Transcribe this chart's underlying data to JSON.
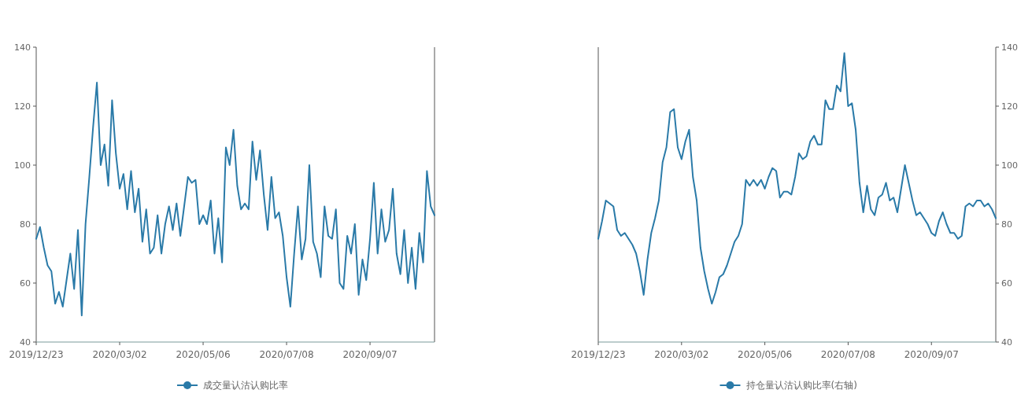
{
  "chart_data": [
    {
      "type": "line",
      "categories": [
        "2019/12/23",
        null,
        null,
        null,
        null,
        null,
        null,
        null,
        null,
        null,
        null,
        null,
        null,
        null,
        null,
        null,
        null,
        null,
        null,
        null,
        null,
        null,
        "2020/03/02",
        null,
        null,
        null,
        null,
        null,
        null,
        null,
        null,
        null,
        null,
        null,
        null,
        null,
        null,
        null,
        null,
        null,
        null,
        null,
        null,
        null,
        "2020/05/06",
        null,
        null,
        null,
        null,
        null,
        null,
        null,
        null,
        null,
        null,
        null,
        null,
        null,
        null,
        null,
        null,
        null,
        null,
        null,
        null,
        null,
        "2020/07/08",
        null,
        null,
        null,
        null,
        null,
        null,
        null,
        null,
        null,
        null,
        null,
        null,
        null,
        null,
        null,
        null,
        null,
        null,
        null,
        null,
        null,
        "2020/09/07",
        null,
        null,
        null,
        null,
        null,
        null,
        null,
        null,
        null,
        null,
        null,
        null,
        null,
        null,
        null,
        null,
        null
      ],
      "ylim": [
        40,
        140
      ],
      "yticks": [
        40,
        60,
        80,
        100,
        120,
        140
      ],
      "legend": "bottom",
      "series": [
        {
          "name": "成交量认沽认购比率",
          "color": "#2a7aa8",
          "values": [
            75,
            79,
            72,
            66,
            64,
            53,
            57,
            52,
            61,
            70,
            58,
            78,
            49,
            80,
            96,
            113,
            128,
            100,
            107,
            93,
            122,
            104,
            92,
            97,
            85,
            98,
            84,
            92,
            74,
            85,
            70,
            72,
            83,
            70,
            80,
            86,
            78,
            87,
            76,
            86,
            96,
            94,
            95,
            80,
            83,
            80,
            88,
            70,
            82,
            67,
            106,
            100,
            112,
            93,
            85,
            87,
            85,
            108,
            95,
            105,
            90,
            78,
            96,
            82,
            84,
            76,
            62,
            52,
            70,
            86,
            68,
            75,
            100,
            74,
            70,
            62,
            86,
            76,
            75,
            85,
            60,
            58,
            76,
            70,
            80,
            56,
            68,
            61,
            75,
            94,
            70,
            85,
            74,
            78,
            92,
            70,
            63,
            78,
            60,
            72,
            58,
            77,
            67,
            98,
            86,
            83
          ]
        }
      ]
    },
    {
      "type": "line",
      "categories": [
        "2019/12/23",
        null,
        null,
        null,
        null,
        null,
        null,
        null,
        null,
        null,
        null,
        null,
        null,
        null,
        null,
        null,
        null,
        null,
        null,
        null,
        null,
        null,
        "2020/03/02",
        null,
        null,
        null,
        null,
        null,
        null,
        null,
        null,
        null,
        null,
        null,
        null,
        null,
        null,
        null,
        null,
        null,
        null,
        null,
        null,
        null,
        "2020/05/06",
        null,
        null,
        null,
        null,
        null,
        null,
        null,
        null,
        null,
        null,
        null,
        null,
        null,
        null,
        null,
        null,
        null,
        null,
        null,
        null,
        null,
        "2020/07/08",
        null,
        null,
        null,
        null,
        null,
        null,
        null,
        null,
        null,
        null,
        null,
        null,
        null,
        null,
        null,
        null,
        null,
        null,
        null,
        null,
        null,
        "2020/09/07",
        null,
        null,
        null,
        null,
        null,
        null,
        null,
        null,
        null,
        null,
        null,
        null,
        null,
        null,
        null,
        null,
        null
      ],
      "y2lim": [
        40,
        140
      ],
      "y2ticks": [
        40,
        60,
        80,
        100,
        120,
        140
      ],
      "legend": "bottom",
      "series": [
        {
          "name": "持仓量认沽认购比率(右轴)",
          "axis": "y2",
          "color": "#2a7aa8",
          "values": [
            75,
            81,
            88,
            87,
            86,
            78,
            76,
            77,
            75,
            73,
            70,
            64,
            56,
            68,
            77,
            82,
            88,
            101,
            106,
            118,
            119,
            106,
            102,
            108,
            112,
            96,
            88,
            72,
            64,
            58,
            53,
            57,
            62,
            63,
            66,
            70,
            74,
            76,
            80,
            95,
            93,
            95,
            93,
            95,
            92,
            96,
            99,
            98,
            89,
            91,
            91,
            90,
            96,
            104,
            102,
            103,
            108,
            110,
            107,
            107,
            122,
            119,
            119,
            127,
            125,
            138,
            120,
            121,
            112,
            94,
            84,
            93,
            85,
            83,
            89,
            90,
            94,
            88,
            89,
            84,
            92,
            100,
            94,
            88,
            83,
            84,
            82,
            80,
            77,
            76,
            81,
            84,
            80,
            77,
            77,
            75,
            76,
            86,
            87,
            86,
            88,
            88,
            86,
            87,
            85,
            82
          ]
        }
      ]
    }
  ]
}
